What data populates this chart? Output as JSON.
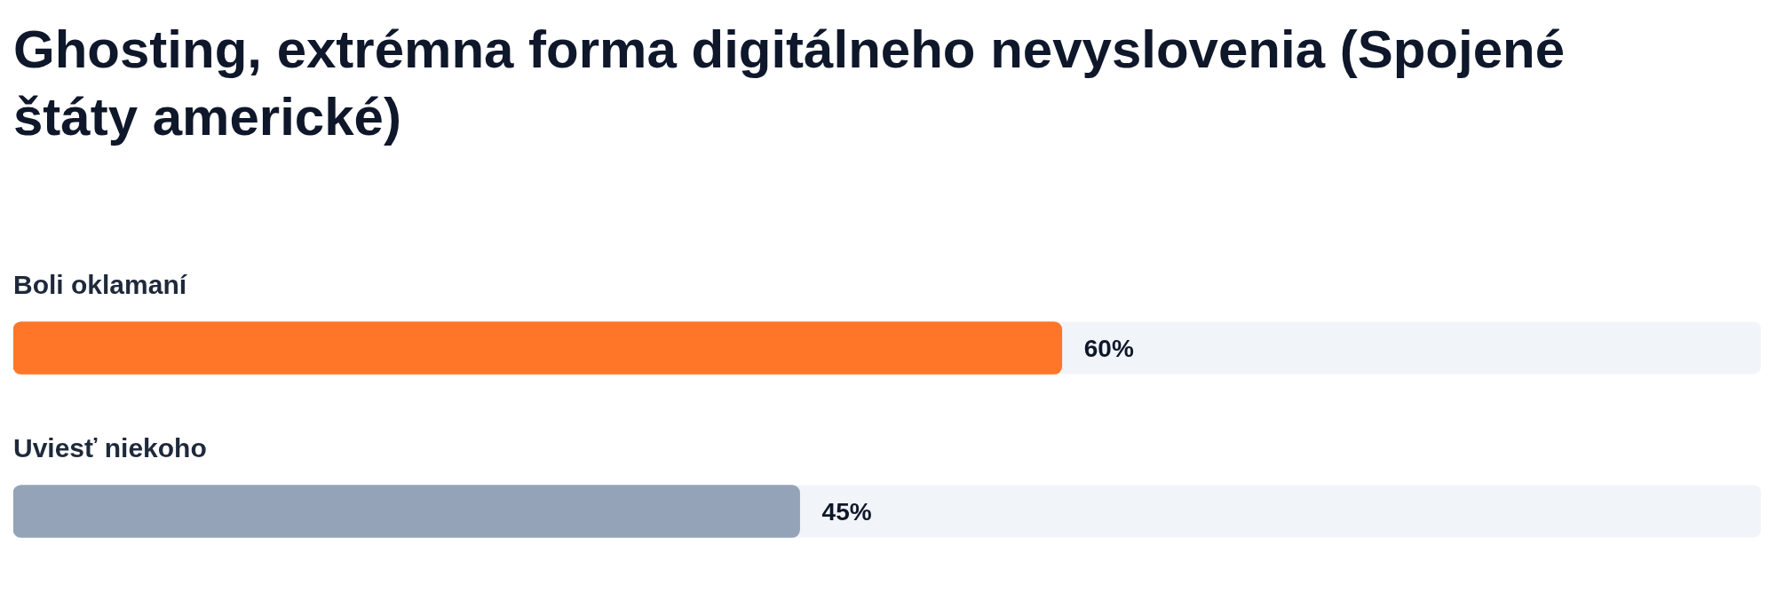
{
  "chart_data": {
    "type": "bar",
    "orientation": "horizontal",
    "title": "Ghosting, extrémna forma digitálneho nevyslovenia (Spojené štáty americké)",
    "categories": [
      "Boli oklamaní",
      "Uviesť niekoho"
    ],
    "values": [
      60,
      45
    ],
    "colors": [
      "#ff7629",
      "#94a3b8"
    ],
    "value_labels": [
      "60%",
      "45%"
    ],
    "xlim": [
      0,
      100
    ],
    "tick_labels": false
  }
}
